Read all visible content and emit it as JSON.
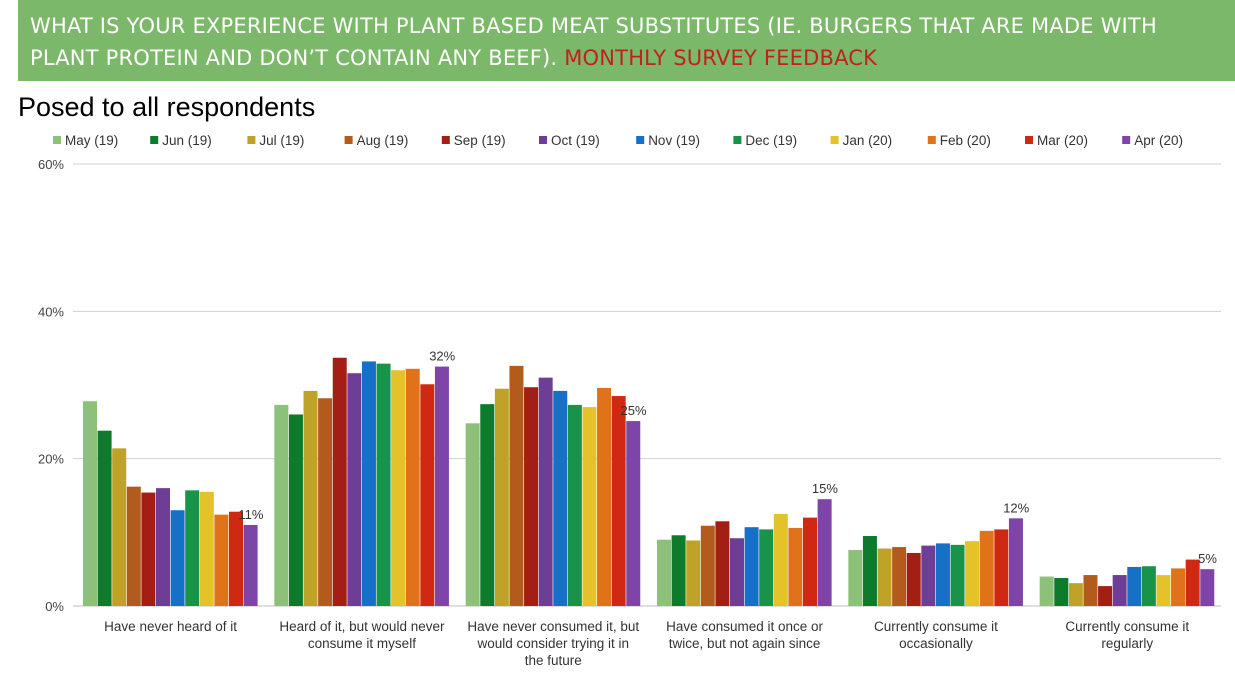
{
  "banner": {
    "title": "WHAT IS YOUR EXPERIENCE WITH PLANT BASED MEAT SUBSTITUTES (IE. BURGERS THAT ARE MADE WITH PLANT PROTEIN AND DON’T CONTAIN ANY BEEF).",
    "accent": "MONTHLY SURVEY FEEDBACK",
    "background_color": "#7cb86a",
    "accent_color": "#c0221b"
  },
  "subtitle": "Posed to all respondents",
  "chart_data": {
    "type": "bar",
    "ylim": [
      0,
      60
    ],
    "yticks": [
      "0%",
      "20%",
      "40%",
      "60%"
    ],
    "grid": true,
    "legend_position": "top",
    "categories": [
      [
        "Have never heard of it"
      ],
      [
        "Heard of it, but would never",
        "consume it myself"
      ],
      [
        "Have never consumed it, but",
        "would consider trying it in",
        "the future"
      ],
      [
        "Have consumed it once or",
        "twice, but not again since"
      ],
      [
        "Currently consume it",
        "occasionally"
      ],
      [
        "Currently consume it",
        "regularly"
      ]
    ],
    "series": [
      {
        "name": "May (19)",
        "color": "#8dc17a",
        "values": [
          27.8,
          27.3,
          24.8,
          9.0,
          7.6,
          4.0
        ]
      },
      {
        "name": "Jun (19)",
        "color": "#0e7a2c",
        "values": [
          23.8,
          26.0,
          27.4,
          9.6,
          9.5,
          3.8
        ]
      },
      {
        "name": "Jul (19)",
        "color": "#bfa328",
        "values": [
          21.4,
          29.2,
          29.5,
          8.9,
          7.8,
          3.1
        ]
      },
      {
        "name": "Aug (19)",
        "color": "#b35b1c",
        "values": [
          16.2,
          28.2,
          32.6,
          10.9,
          8.0,
          4.2
        ]
      },
      {
        "name": "Sep (19)",
        "color": "#a31f15",
        "values": [
          15.4,
          33.7,
          29.7,
          11.5,
          7.2,
          2.7
        ]
      },
      {
        "name": "Oct (19)",
        "color": "#6e3d96",
        "values": [
          16.0,
          31.6,
          31.0,
          9.2,
          8.2,
          4.2
        ]
      },
      {
        "name": "Nov (19)",
        "color": "#1670c7",
        "values": [
          13.0,
          33.2,
          29.2,
          10.7,
          8.5,
          5.3
        ]
      },
      {
        "name": "Dec (19)",
        "color": "#17944a",
        "values": [
          15.7,
          32.9,
          27.3,
          10.4,
          8.3,
          5.4
        ]
      },
      {
        "name": "Jan (20)",
        "color": "#e3c22a",
        "values": [
          15.5,
          32.0,
          27.0,
          12.5,
          8.8,
          4.2
        ]
      },
      {
        "name": "Feb (20)",
        "color": "#e07219",
        "values": [
          12.4,
          32.2,
          29.6,
          10.6,
          10.2,
          5.1
        ]
      },
      {
        "name": "Mar (20)",
        "color": "#cf2913",
        "values": [
          12.8,
          30.1,
          28.5,
          12.0,
          10.4,
          6.3
        ]
      },
      {
        "name": "Apr (20)",
        "color": "#7e44a8",
        "values": [
          11.0,
          32.5,
          25.1,
          14.5,
          11.9,
          5.0
        ]
      }
    ],
    "data_labels": [
      {
        "series": "Apr (20)",
        "category_index": 0,
        "text": "11%"
      },
      {
        "series": "Apr (20)",
        "category_index": 1,
        "text": "32%"
      },
      {
        "series": "Apr (20)",
        "category_index": 2,
        "text": "25%"
      },
      {
        "series": "Apr (20)",
        "category_index": 3,
        "text": "15%"
      },
      {
        "series": "Apr (20)",
        "category_index": 4,
        "text": "12%"
      },
      {
        "series": "Apr (20)",
        "category_index": 5,
        "text": "5%"
      }
    ]
  }
}
